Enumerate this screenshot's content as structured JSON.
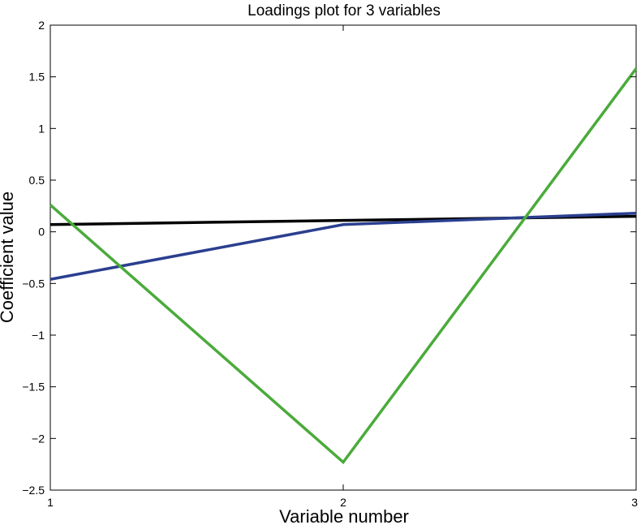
{
  "chart_data": {
    "type": "line",
    "title": "Loadings plot for 3 variables",
    "xlabel": "Variable number",
    "ylabel": "Coefficient value",
    "x": [
      1,
      2,
      3
    ],
    "xlim": [
      1,
      3
    ],
    "ylim": [
      -2.5,
      2
    ],
    "xticks": [
      1,
      2,
      3
    ],
    "xtick_labels": [
      "1",
      "2",
      "3"
    ],
    "yticks": [
      -2.5,
      -2,
      -1.5,
      -1,
      -0.5,
      0,
      0.5,
      1,
      1.5,
      2
    ],
    "ytick_labels": [
      "−2.5",
      "−2",
      "−1.5",
      "−1",
      "−0.5",
      "0",
      "0.5",
      "1",
      "1.5",
      "2"
    ],
    "grid": false,
    "legend": false,
    "series": [
      {
        "color": "#000000",
        "values": [
          0.07,
          0.11,
          0.15
        ]
      },
      {
        "color": "#2a3f8f",
        "values": [
          -0.46,
          0.07,
          0.18
        ]
      },
      {
        "color": "#4aab3a",
        "values": [
          0.26,
          -2.23,
          1.58
        ]
      }
    ]
  }
}
